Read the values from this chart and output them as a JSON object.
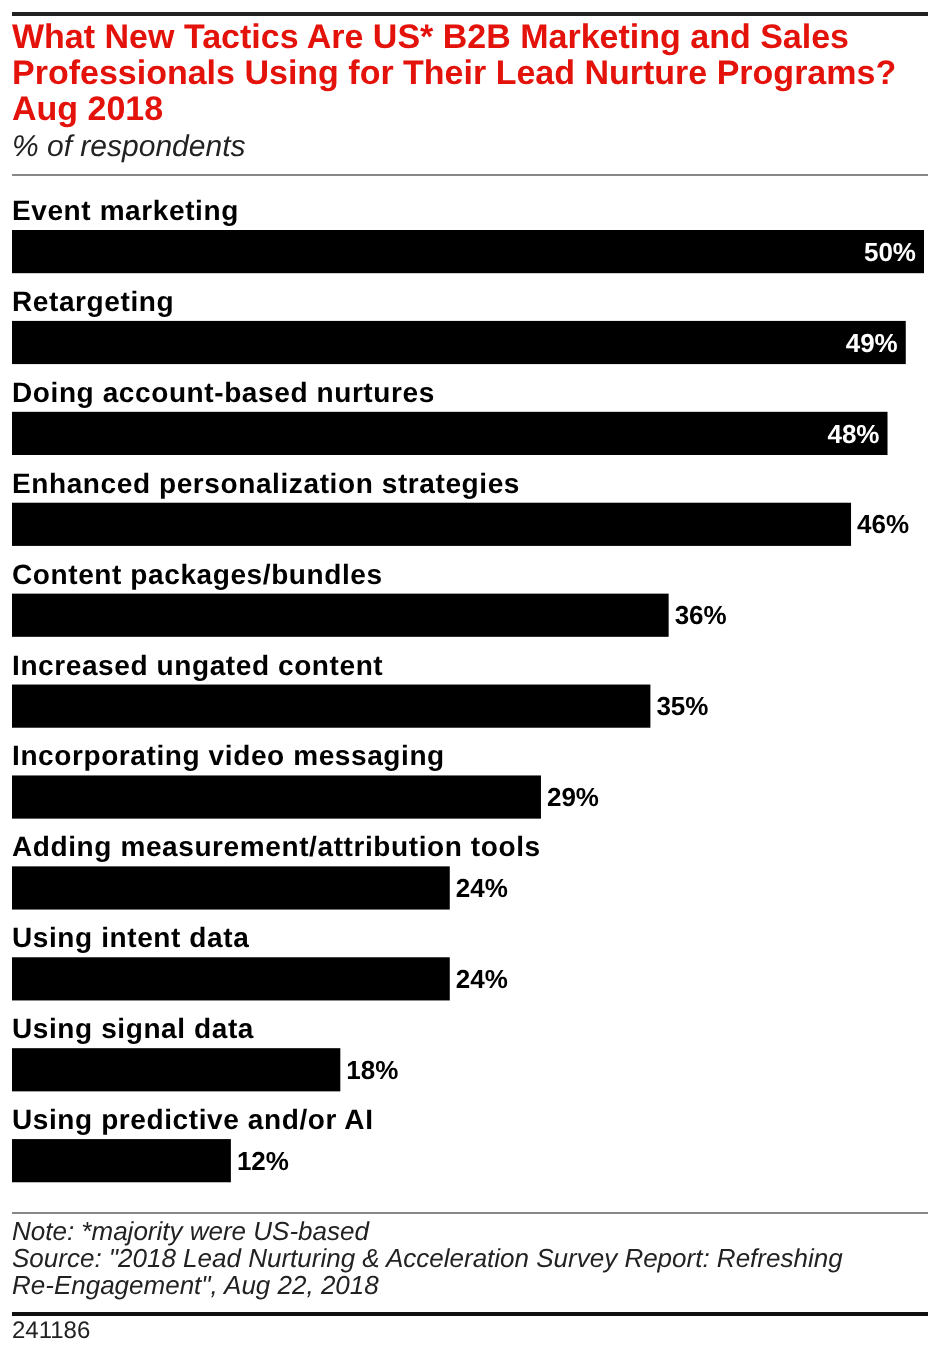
{
  "chart_data": {
    "type": "bar",
    "orientation": "horizontal",
    "title": "What New Tactics Are US* B2B Marketing and Sales Professionals Using for Their Lead Nurture Programs? Aug 2018",
    "subtitle": "% of respondents",
    "categories": [
      "Event marketing",
      "Retargeting",
      "Doing account-based nurtures",
      "Enhanced personalization strategies",
      "Content packages/bundles",
      "Increased ungated content",
      "Incorporating video messaging",
      "Adding measurement/attribution tools",
      "Using intent data",
      "Using signal data",
      "Using predictive and/or AI"
    ],
    "values": [
      50,
      49,
      48,
      46,
      36,
      35,
      29,
      24,
      24,
      18,
      12
    ],
    "value_labels": [
      "50%",
      "49%",
      "48%",
      "46%",
      "36%",
      "35%",
      "29%",
      "24%",
      "24%",
      "18%",
      "12%"
    ],
    "color": "#000000",
    "annotations": [
      "Note: *majority were US-based",
      "Source: \"2018 Lead Nurturing & Acceleration Survey Report: Refreshing Re-Engagement\", Aug 22, 2018",
      "241186"
    ]
  }
}
